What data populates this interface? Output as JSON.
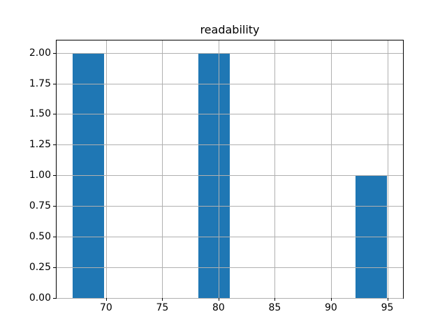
{
  "chart_data": {
    "type": "bar",
    "title": "readability",
    "xlabel": "",
    "ylabel": "",
    "xlim": [
      65.6,
      96.4
    ],
    "ylim": [
      0,
      2.1
    ],
    "grid": true,
    "grid_color": "#b0b0b0",
    "spine_color": "#000000",
    "bar_color": "#1f77b4",
    "x_ticks": [
      70,
      75,
      80,
      85,
      90,
      95
    ],
    "x_tick_labels": [
      "70",
      "75",
      "80",
      "85",
      "90",
      "95"
    ],
    "y_ticks": [
      0.0,
      0.25,
      0.5,
      0.75,
      1.0,
      1.25,
      1.5,
      1.75,
      2.0
    ],
    "y_tick_labels": [
      "0.00",
      "0.25",
      "0.50",
      "0.75",
      "1.00",
      "1.25",
      "1.50",
      "1.75",
      "2.00"
    ],
    "bars": [
      {
        "x_start": 67.0,
        "x_end": 69.8,
        "count": 2
      },
      {
        "x_start": 78.2,
        "x_end": 81.0,
        "count": 2
      },
      {
        "x_start": 92.2,
        "x_end": 95.0,
        "count": 1
      }
    ]
  }
}
